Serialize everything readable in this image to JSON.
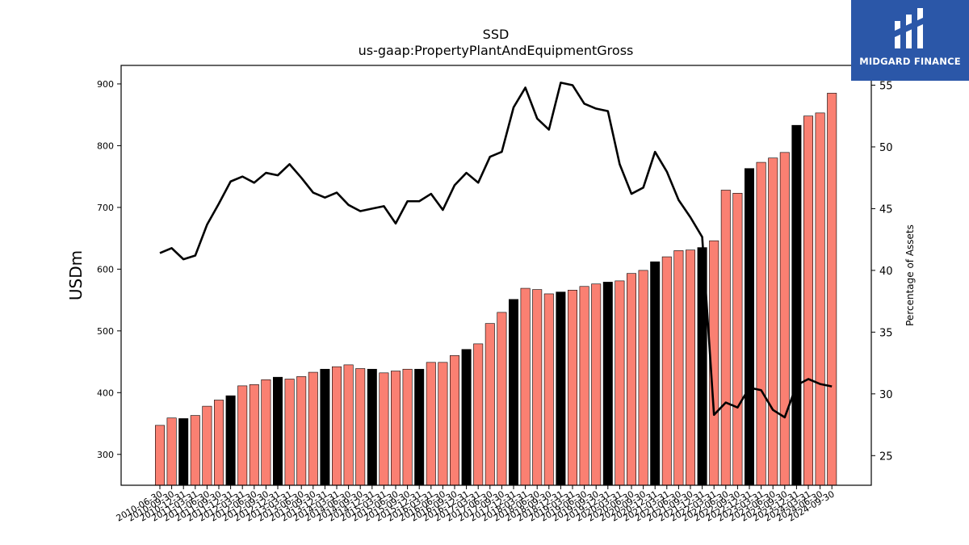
{
  "chart_data": {
    "type": "bar",
    "title": "SSD",
    "subtitle": "us-gaap:PropertyPlantAndEquipmentGross",
    "ylabel": "USDm",
    "y2label": "Percentage of Assets",
    "ylim": [
      250,
      930
    ],
    "y2lim": [
      22.6,
      56.6
    ],
    "yticks": [
      300,
      400,
      500,
      600,
      700,
      800,
      900
    ],
    "y2ticks": [
      25,
      30,
      35,
      40,
      45,
      50,
      55
    ],
    "categories": [
      "2010-06-30",
      "2010-09-30",
      "2010-12-31",
      "2011-03-31",
      "2011-06-30",
      "2011-09-30",
      "2011-12-31",
      "2012-03-31",
      "2012-06-30",
      "2012-09-30",
      "2012-12-31",
      "2013-03-31",
      "2013-06-30",
      "2013-09-30",
      "2013-12-31",
      "2014-03-31",
      "2014-06-30",
      "2014-09-30",
      "2014-12-31",
      "2015-03-31",
      "2015-06-30",
      "2015-09-30",
      "2015-12-31",
      "2016-03-31",
      "2016-06-30",
      "2016-09-30",
      "2016-12-31",
      "2017-03-31",
      "2017-06-30",
      "2017-09-30",
      "2017-12-31",
      "2018-03-31",
      "2018-06-30",
      "2018-09-30",
      "2018-12-31",
      "2019-03-31",
      "2019-06-30",
      "2019-09-30",
      "2019-12-31",
      "2020-03-31",
      "2020-06-30",
      "2020-09-30",
      "2020-12-31",
      "2021-03-31",
      "2021-06-30",
      "2021-09-30",
      "2021-12-31",
      "2022-03-31",
      "2022-06-30",
      "2022-09-30",
      "2022-12-31",
      "2023-03-31",
      "2023-06-30",
      "2023-09-30",
      "2023-12-31",
      "2024-03-31",
      "2024-06-30",
      "2024-09-30"
    ],
    "series": [
      {
        "type": "bar",
        "axis": "left",
        "values": [
          347,
          359,
          358,
          363,
          378,
          388,
          395,
          411,
          413,
          421,
          425,
          422,
          426,
          433,
          438,
          442,
          445,
          439,
          438,
          432,
          435,
          438,
          438,
          449,
          449,
          460,
          470,
          479,
          512,
          530,
          551,
          569,
          567,
          560,
          563,
          566,
          572,
          576,
          579,
          581,
          593,
          598,
          612,
          620,
          630,
          631,
          635,
          646,
          728,
          723,
          763,
          773,
          780,
          789,
          833,
          848,
          853,
          885
        ],
        "colors": {
          "normal": "#fa8072",
          "year_end": "#000000"
        }
      },
      {
        "type": "line",
        "axis": "right",
        "color": "#000000",
        "values": [
          41.4,
          41.8,
          40.9,
          41.2,
          43.7,
          45.4,
          47.2,
          47.6,
          47.1,
          47.9,
          47.7,
          48.6,
          47.5,
          46.3,
          45.9,
          46.3,
          45.3,
          44.8,
          45.0,
          45.2,
          43.8,
          45.6,
          45.6,
          46.2,
          44.9,
          46.9,
          47.9,
          47.1,
          49.2,
          49.6,
          53.2,
          54.8,
          52.3,
          51.4,
          55.2,
          55.0,
          53.5,
          53.1,
          52.9,
          48.6,
          46.2,
          46.7,
          49.6,
          48.0,
          45.7,
          44.3,
          42.7,
          28.3,
          29.3,
          28.9,
          30.5,
          30.3,
          28.7,
          28.1,
          30.7,
          31.2,
          30.8,
          30.6
        ]
      }
    ],
    "grid": false,
    "legend": "none"
  },
  "logo": {
    "brand": "MIDGARD FINANCE",
    "bg_color": "#2b57a8"
  }
}
